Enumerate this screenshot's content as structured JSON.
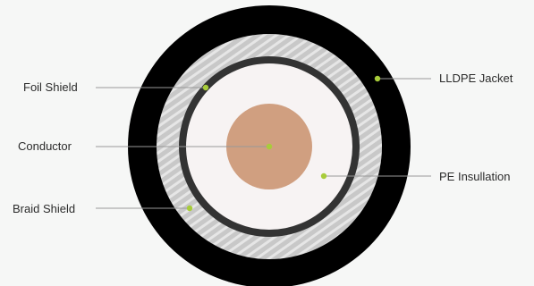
{
  "labels": {
    "foil_shield": "Foil Shield",
    "conductor": "Conductor",
    "braid_shield": "Braid Shield",
    "lldpe_jacket": "LLDPE Jacket",
    "pe_insulation": "PE Insullation"
  },
  "colors": {
    "background": "#f6f7f6",
    "jacket": "#000000",
    "braid_base": "#c8c8c8",
    "braid_stripe": "#e6e6e6",
    "foil": "#333333",
    "insulation": "#f7f3f3",
    "conductor": "#d09f80",
    "marker": "#a8cc3a",
    "leader_line": "#999999"
  }
}
